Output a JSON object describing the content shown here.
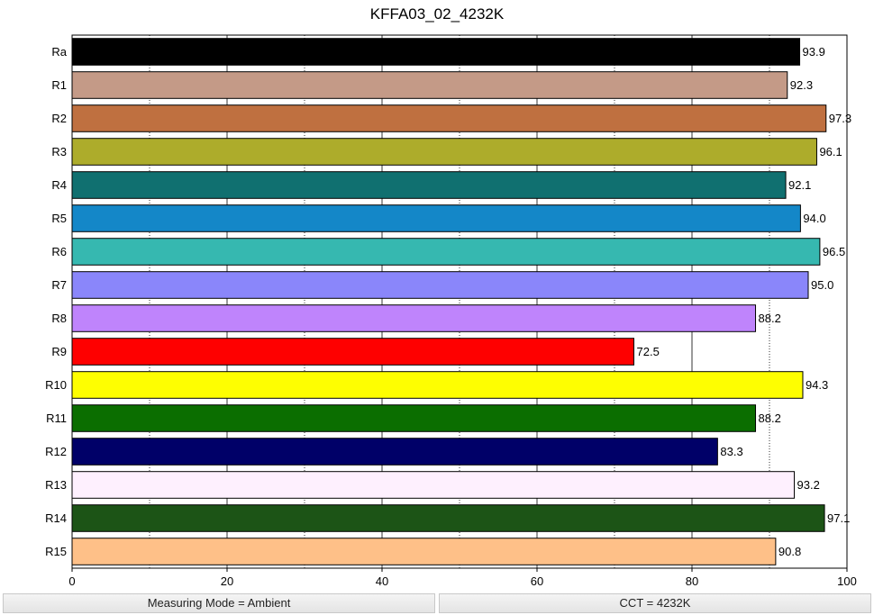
{
  "title": "KFFA03_02_4232K",
  "chart_data": {
    "type": "bar",
    "orientation": "horizontal",
    "title": "KFFA03_02_4232K",
    "xlabel": "",
    "ylabel": "",
    "xlim": [
      0,
      100
    ],
    "xticks": [
      0,
      20,
      40,
      60,
      80,
      100
    ],
    "grid": true,
    "categories": [
      "Ra",
      "R1",
      "R2",
      "R3",
      "R4",
      "R5",
      "R6",
      "R7",
      "R8",
      "R9",
      "R10",
      "R11",
      "R12",
      "R13",
      "R14",
      "R15"
    ],
    "values": [
      93.9,
      92.3,
      97.3,
      96.1,
      92.1,
      94.0,
      96.5,
      95.0,
      88.2,
      72.5,
      94.3,
      88.2,
      83.3,
      93.2,
      97.1,
      90.8
    ],
    "labels": [
      "93.9",
      "92.3",
      "97.3",
      "96.1",
      "92.1",
      "94.0",
      "96.5",
      "95.0",
      "88.2",
      "72.5",
      "94.3",
      "88.2",
      "83.3",
      "93.2",
      "97.1",
      "90.8"
    ],
    "colors": [
      "#000000",
      "#c49a87",
      "#bf7040",
      "#adac2b",
      "#107070",
      "#1487c8",
      "#36b8b0",
      "#8a86fa",
      "#bf84fc",
      "#fe0000",
      "#fefe01",
      "#0b6e00",
      "#000068",
      "#fef0fe",
      "#1c5416",
      "#fec088"
    ]
  },
  "status": {
    "measuring_mode": "Measuring Mode = Ambient",
    "cct": "CCT = 4232K"
  }
}
